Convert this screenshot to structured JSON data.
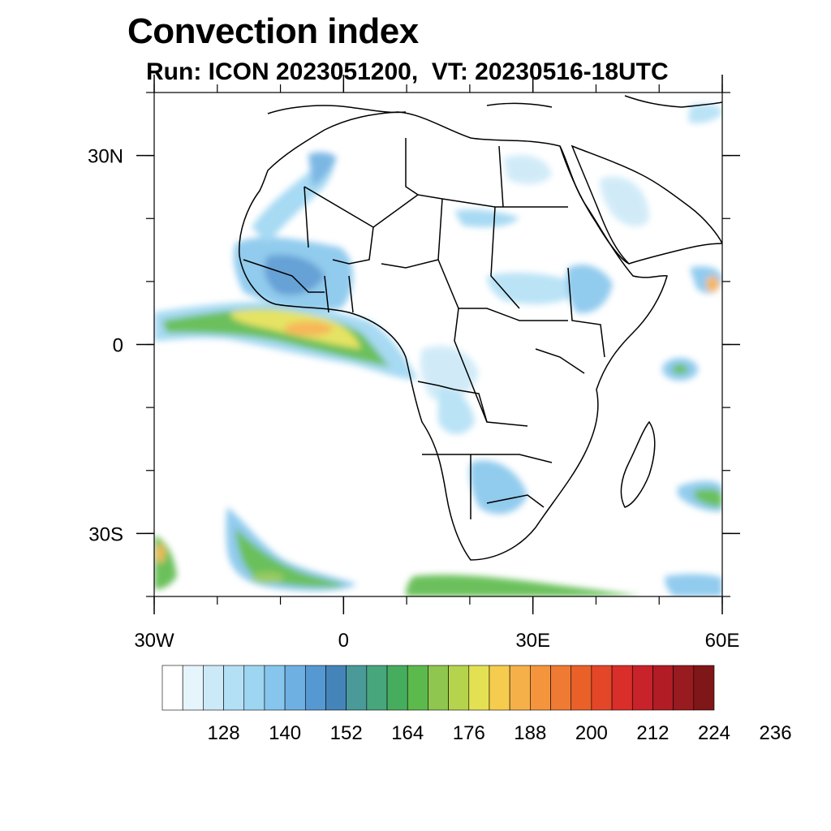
{
  "title": "Convection index",
  "subtitle": "Run: ICON 2023051200,  VT: 20230516-18UTC",
  "map": {
    "lon_range": [
      -30,
      60
    ],
    "lat_range": [
      -40,
      40
    ],
    "lat_ticks": [
      {
        "value": 30,
        "label": "30N"
      },
      {
        "value": 0,
        "label": "0"
      },
      {
        "value": -30,
        "label": "30S"
      }
    ],
    "lon_ticks": [
      {
        "value": -30,
        "label": "30W"
      },
      {
        "value": 0,
        "label": "0"
      },
      {
        "value": 30,
        "label": "30E"
      },
      {
        "value": 60,
        "label": "60E"
      }
    ]
  },
  "colorbar": {
    "colors": [
      "#ffffff",
      "#e6f4fb",
      "#cce9f7",
      "#b3e0f5",
      "#9ed6f2",
      "#86c6ec",
      "#6eb0e2",
      "#5698d2",
      "#4584b8",
      "#4a9a9a",
      "#48a67c",
      "#46ad5e",
      "#5cba4c",
      "#8fc64f",
      "#b6d34e",
      "#e3e153",
      "#f6cc4f",
      "#f6b04a",
      "#f4953e",
      "#ef7a33",
      "#ea6029",
      "#e34728",
      "#d92e29",
      "#c8222a",
      "#b11c25",
      "#981b20",
      "#7f1618"
    ],
    "labels": [
      "128",
      "140",
      "152",
      "164",
      "176",
      "188",
      "200",
      "212",
      "224",
      "236"
    ]
  }
}
